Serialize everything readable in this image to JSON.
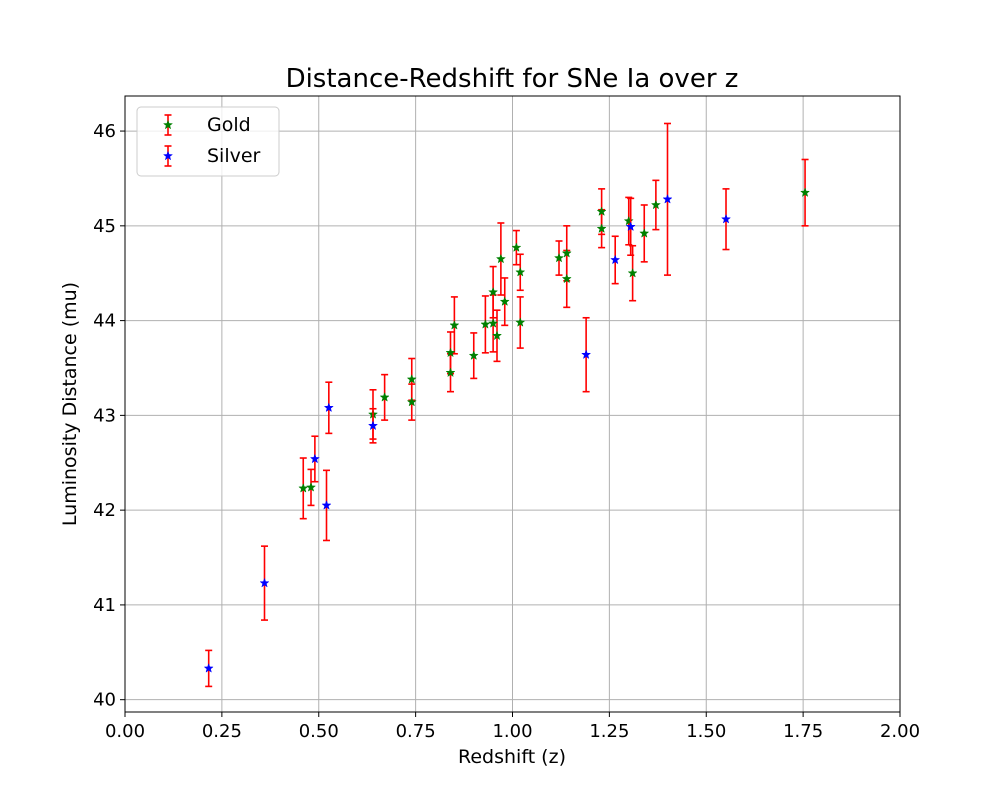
{
  "chart_data": {
    "type": "scatter",
    "title": "Distance-Redshift for SNe Ia over z",
    "xlabel": "Redshift (z)",
    "ylabel": "Luminosity Distance (mu)",
    "xlim": [
      0.0,
      2.0
    ],
    "ylim": [
      39.87,
      46.37
    ],
    "xticks": [
      "0.00",
      "0.25",
      "0.50",
      "0.75",
      "1.00",
      "1.25",
      "1.50",
      "1.75",
      "2.00"
    ],
    "yticks": [
      "40",
      "41",
      "42",
      "43",
      "44",
      "45",
      "46"
    ],
    "grid": true,
    "legend_position": "upper-left",
    "colors": {
      "gold": "#008000",
      "silver": "#0000ff",
      "error_bar": "#ff0000",
      "grid": "#b0b0b0"
    },
    "series": [
      {
        "name": "Gold",
        "marker": "star",
        "color": "#008000",
        "points": [
          {
            "x": 0.46,
            "y": 42.23,
            "err": 0.32
          },
          {
            "x": 0.48,
            "y": 42.24,
            "err": 0.19
          },
          {
            "x": 0.64,
            "y": 43.01,
            "err": 0.26
          },
          {
            "x": 0.67,
            "y": 43.19,
            "err": 0.24
          },
          {
            "x": 0.74,
            "y": 43.14,
            "err": 0.19
          },
          {
            "x": 0.74,
            "y": 43.38,
            "err": 0.22
          },
          {
            "x": 0.84,
            "y": 43.45,
            "err": 0.2
          },
          {
            "x": 0.84,
            "y": 43.66,
            "err": 0.22
          },
          {
            "x": 0.85,
            "y": 43.95,
            "err": 0.3
          },
          {
            "x": 0.9,
            "y": 43.63,
            "err": 0.24
          },
          {
            "x": 0.93,
            "y": 43.96,
            "err": 0.3
          },
          {
            "x": 0.95,
            "y": 43.97,
            "err": 0.3
          },
          {
            "x": 0.95,
            "y": 44.3,
            "err": 0.27
          },
          {
            "x": 0.96,
            "y": 43.84,
            "err": 0.27
          },
          {
            "x": 0.97,
            "y": 44.65,
            "err": 0.38
          },
          {
            "x": 0.98,
            "y": 44.2,
            "err": 0.25
          },
          {
            "x": 1.01,
            "y": 44.77,
            "err": 0.18
          },
          {
            "x": 1.02,
            "y": 44.51,
            "err": 0.19
          },
          {
            "x": 1.02,
            "y": 43.98,
            "err": 0.27
          },
          {
            "x": 1.12,
            "y": 44.66,
            "err": 0.18
          },
          {
            "x": 1.14,
            "y": 44.71,
            "err": 0.29
          },
          {
            "x": 1.14,
            "y": 44.44,
            "err": 0.3
          },
          {
            "x": 1.23,
            "y": 45.15,
            "err": 0.24
          },
          {
            "x": 1.23,
            "y": 44.97,
            "err": 0.2
          },
          {
            "x": 1.3,
            "y": 45.05,
            "err": 0.25
          },
          {
            "x": 1.31,
            "y": 44.5,
            "err": 0.29
          },
          {
            "x": 1.34,
            "y": 44.92,
            "err": 0.3
          },
          {
            "x": 1.37,
            "y": 45.22,
            "err": 0.26
          },
          {
            "x": 1.755,
            "y": 45.35,
            "err": 0.35
          }
        ]
      },
      {
        "name": "Silver",
        "marker": "star",
        "color": "#0000ff",
        "points": [
          {
            "x": 0.216,
            "y": 40.33,
            "err": 0.19
          },
          {
            "x": 0.36,
            "y": 41.23,
            "err": 0.39
          },
          {
            "x": 0.49,
            "y": 42.54,
            "err": 0.24
          },
          {
            "x": 0.52,
            "y": 42.05,
            "err": 0.37
          },
          {
            "x": 0.526,
            "y": 43.08,
            "err": 0.27
          },
          {
            "x": 0.64,
            "y": 42.89,
            "err": 0.18
          },
          {
            "x": 1.19,
            "y": 43.64,
            "err": 0.39
          },
          {
            "x": 1.265,
            "y": 44.64,
            "err": 0.25
          },
          {
            "x": 1.305,
            "y": 44.99,
            "err": 0.3
          },
          {
            "x": 1.4,
            "y": 45.28,
            "err": 0.8
          },
          {
            "x": 1.551,
            "y": 45.07,
            "err": 0.32
          }
        ]
      }
    ]
  }
}
